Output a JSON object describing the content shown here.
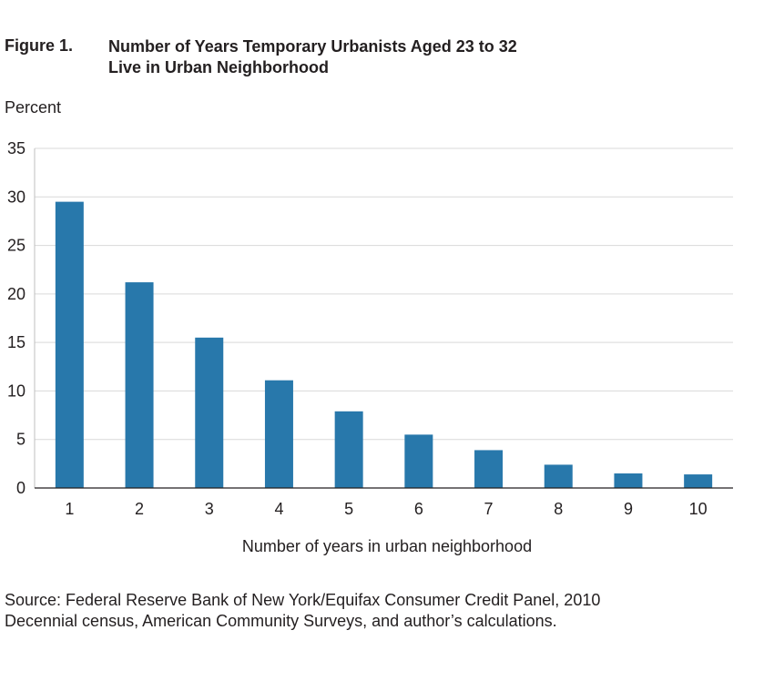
{
  "figure": {
    "label": "Figure 1.",
    "title_line1": "Number of Years Temporary Urbanists Aged 23 to 32",
    "title_line2": "Live in Urban Neighborhood"
  },
  "source": {
    "line1": "Source: Federal Reserve Bank of New York/Equifax Consumer Credit Panel, 2010",
    "line2": "Decennial census, American Community Surveys, and author’s calculations."
  },
  "chart_data": {
    "type": "bar",
    "title": "Number of Years Temporary Urbanists Aged 23 to 32 Live in Urban Neighborhood",
    "ylabel": "Percent",
    "xlabel": "Number of years in urban neighborhood",
    "categories": [
      "1",
      "2",
      "3",
      "4",
      "5",
      "6",
      "7",
      "8",
      "9",
      "10"
    ],
    "values": [
      29.5,
      21.2,
      15.5,
      11.1,
      7.9,
      5.5,
      3.9,
      2.4,
      1.5,
      1.4
    ],
    "ylim": [
      0,
      35
    ],
    "yticks": [
      0,
      5,
      10,
      15,
      20,
      25,
      30,
      35
    ],
    "grid": true,
    "bar_color": "#2878ab"
  }
}
